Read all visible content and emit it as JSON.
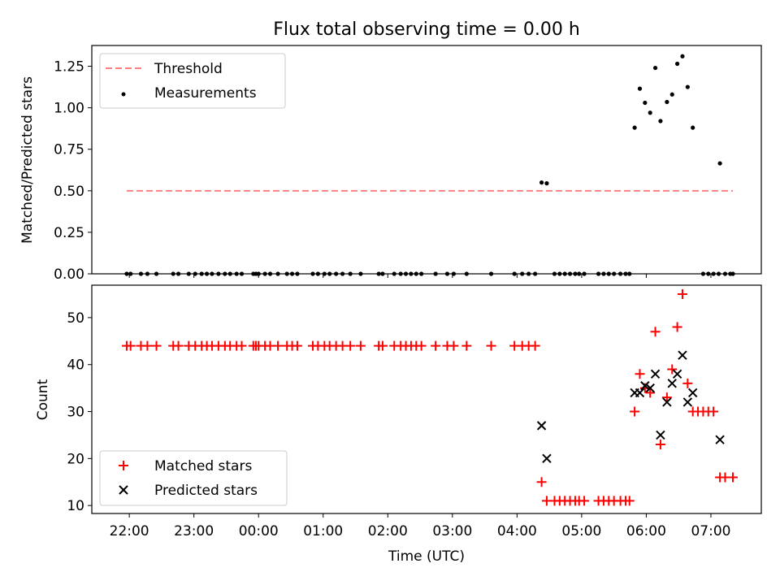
{
  "chart_data": [
    {
      "type": "scatter",
      "title": "Flux total observing time = 0.00 h",
      "xlabel": "",
      "ylabel": "Matched/Predicted stars",
      "ylim": [
        0,
        1.375
      ],
      "xlim_hours": [
        -2.58,
        7.78
      ],
      "yticks": [
        0.0,
        0.25,
        0.5,
        0.75,
        1.0,
        1.25
      ],
      "ytick_labels": [
        "0.00",
        "0.25",
        "0.50",
        "0.75",
        "1.00",
        "1.25"
      ],
      "legend": {
        "location": "top-left",
        "entries": [
          "Threshold",
          "Measurements"
        ]
      },
      "threshold": {
        "name": "Threshold",
        "value": 0.5,
        "x_range_hours": [
          -2.04,
          7.34
        ],
        "color": "#ff8080"
      },
      "series": [
        {
          "name": "Measurements",
          "color": "#000000",
          "points": [
            [
              -2.04,
              0
            ],
            [
              -1.98,
              0
            ],
            [
              -1.82,
              0
            ],
            [
              -1.72,
              0
            ],
            [
              -1.58,
              0
            ],
            [
              -1.32,
              0
            ],
            [
              -1.24,
              0
            ],
            [
              -1.08,
              0
            ],
            [
              -0.98,
              0
            ],
            [
              -0.88,
              0
            ],
            [
              -0.8,
              0
            ],
            [
              -0.72,
              0
            ],
            [
              -0.62,
              0
            ],
            [
              -0.52,
              0
            ],
            [
              -0.44,
              0
            ],
            [
              -0.34,
              0
            ],
            [
              -0.26,
              0
            ],
            [
              -0.08,
              0
            ],
            [
              -0.04,
              0
            ],
            [
              0.0,
              0
            ],
            [
              0.1,
              0
            ],
            [
              0.18,
              0
            ],
            [
              0.3,
              0
            ],
            [
              0.44,
              0
            ],
            [
              0.52,
              0
            ],
            [
              0.6,
              0
            ],
            [
              0.84,
              0
            ],
            [
              0.92,
              0
            ],
            [
              1.02,
              0
            ],
            [
              1.1,
              0
            ],
            [
              1.2,
              0
            ],
            [
              1.3,
              0
            ],
            [
              1.42,
              0
            ],
            [
              1.58,
              0
            ],
            [
              1.86,
              0
            ],
            [
              1.92,
              0
            ],
            [
              2.1,
              0
            ],
            [
              2.2,
              0
            ],
            [
              2.28,
              0
            ],
            [
              2.36,
              0
            ],
            [
              2.44,
              0
            ],
            [
              2.52,
              0
            ],
            [
              2.74,
              0
            ],
            [
              2.92,
              0
            ],
            [
              3.02,
              0
            ],
            [
              3.22,
              0
            ],
            [
              3.6,
              0
            ],
            [
              3.96,
              0
            ],
            [
              4.08,
              0
            ],
            [
              4.18,
              0
            ],
            [
              4.28,
              0
            ],
            [
              4.38,
              0.55
            ],
            [
              4.46,
              0.545
            ],
            [
              4.58,
              0
            ],
            [
              4.66,
              0
            ],
            [
              4.74,
              0
            ],
            [
              4.82,
              0
            ],
            [
              4.9,
              0
            ],
            [
              4.96,
              0
            ],
            [
              5.04,
              0
            ],
            [
              5.26,
              0
            ],
            [
              5.34,
              0
            ],
            [
              5.42,
              0
            ],
            [
              5.5,
              0
            ],
            [
              5.6,
              0
            ],
            [
              5.68,
              0
            ],
            [
              5.74,
              0
            ],
            [
              5.82,
              0.88
            ],
            [
              5.9,
              1.115
            ],
            [
              5.98,
              1.03
            ],
            [
              6.06,
              0.97
            ],
            [
              6.14,
              1.24
            ],
            [
              6.22,
              0.92
            ],
            [
              6.32,
              1.035
            ],
            [
              6.4,
              1.08
            ],
            [
              6.48,
              1.265
            ],
            [
              6.56,
              1.31
            ],
            [
              6.64,
              1.125
            ],
            [
              6.72,
              0.88
            ],
            [
              6.88,
              0
            ],
            [
              6.96,
              0
            ],
            [
              7.04,
              0
            ],
            [
              7.12,
              0
            ],
            [
              7.14,
              0.665
            ],
            [
              7.22,
              0
            ],
            [
              7.3,
              0
            ],
            [
              7.34,
              0
            ]
          ]
        }
      ]
    },
    {
      "type": "scatter",
      "title": "",
      "xlabel": "Time (UTC)",
      "ylabel": "Count",
      "ylim": [
        8.3,
        56.9
      ],
      "xlim_hours": [
        -2.58,
        7.78
      ],
      "yticks": [
        10,
        20,
        30,
        40,
        50
      ],
      "ytick_labels": [
        "10",
        "20",
        "30",
        "40",
        "50"
      ],
      "xticks_hours": [
        -2,
        -1,
        0,
        1,
        2,
        3,
        4,
        5,
        6,
        7
      ],
      "xtick_labels": [
        "22:00",
        "23:00",
        "00:00",
        "01:00",
        "02:00",
        "03:00",
        "04:00",
        "05:00",
        "06:00",
        "07:00"
      ],
      "legend": {
        "location": "bottom-left",
        "entries": [
          "Matched stars",
          "Predicted stars"
        ]
      },
      "series": [
        {
          "name": "Matched stars",
          "color": "#ff0000",
          "marker": "plus",
          "points": [
            [
              -2.04,
              44
            ],
            [
              -1.98,
              44
            ],
            [
              -1.82,
              44
            ],
            [
              -1.72,
              44
            ],
            [
              -1.58,
              44
            ],
            [
              -1.32,
              44
            ],
            [
              -1.24,
              44
            ],
            [
              -1.08,
              44
            ],
            [
              -0.98,
              44
            ],
            [
              -0.88,
              44
            ],
            [
              -0.8,
              44
            ],
            [
              -0.72,
              44
            ],
            [
              -0.62,
              44
            ],
            [
              -0.52,
              44
            ],
            [
              -0.44,
              44
            ],
            [
              -0.34,
              44
            ],
            [
              -0.26,
              44
            ],
            [
              -0.08,
              44
            ],
            [
              -0.04,
              44
            ],
            [
              0.0,
              44
            ],
            [
              0.1,
              44
            ],
            [
              0.18,
              44
            ],
            [
              0.3,
              44
            ],
            [
              0.44,
              44
            ],
            [
              0.52,
              44
            ],
            [
              0.6,
              44
            ],
            [
              0.84,
              44
            ],
            [
              0.92,
              44
            ],
            [
              1.02,
              44
            ],
            [
              1.1,
              44
            ],
            [
              1.2,
              44
            ],
            [
              1.3,
              44
            ],
            [
              1.42,
              44
            ],
            [
              1.58,
              44
            ],
            [
              1.86,
              44
            ],
            [
              1.92,
              44
            ],
            [
              2.1,
              44
            ],
            [
              2.2,
              44
            ],
            [
              2.28,
              44
            ],
            [
              2.36,
              44
            ],
            [
              2.44,
              44
            ],
            [
              2.52,
              44
            ],
            [
              2.74,
              44
            ],
            [
              2.92,
              44
            ],
            [
              3.02,
              44
            ],
            [
              3.22,
              44
            ],
            [
              3.6,
              44
            ],
            [
              3.96,
              44
            ],
            [
              4.08,
              44
            ],
            [
              4.18,
              44
            ],
            [
              4.28,
              44
            ],
            [
              4.38,
              15
            ],
            [
              4.46,
              11
            ],
            [
              4.58,
              11
            ],
            [
              4.66,
              11
            ],
            [
              4.74,
              11
            ],
            [
              4.82,
              11
            ],
            [
              4.9,
              11
            ],
            [
              4.96,
              11
            ],
            [
              5.04,
              11
            ],
            [
              5.26,
              11
            ],
            [
              5.34,
              11
            ],
            [
              5.42,
              11
            ],
            [
              5.5,
              11
            ],
            [
              5.6,
              11
            ],
            [
              5.68,
              11
            ],
            [
              5.74,
              11
            ],
            [
              5.82,
              30
            ],
            [
              5.9,
              38
            ],
            [
              5.98,
              35
            ],
            [
              6.06,
              34
            ],
            [
              6.14,
              47
            ],
            [
              6.22,
              23
            ],
            [
              6.32,
              33
            ],
            [
              6.4,
              39
            ],
            [
              6.48,
              48
            ],
            [
              6.56,
              55
            ],
            [
              6.64,
              36
            ],
            [
              6.72,
              30
            ],
            [
              6.8,
              30
            ],
            [
              6.88,
              30
            ],
            [
              6.96,
              30
            ],
            [
              7.04,
              30
            ],
            [
              7.14,
              16
            ],
            [
              7.22,
              16
            ],
            [
              7.34,
              16
            ]
          ]
        },
        {
          "name": "Predicted stars",
          "color": "#000000",
          "marker": "x",
          "points": [
            [
              4.38,
              27
            ],
            [
              4.46,
              20
            ],
            [
              5.82,
              34
            ],
            [
              5.9,
              34
            ],
            [
              5.98,
              35.5
            ],
            [
              6.06,
              35
            ],
            [
              6.14,
              38
            ],
            [
              6.22,
              25
            ],
            [
              6.32,
              32
            ],
            [
              6.4,
              36
            ],
            [
              6.48,
              38
            ],
            [
              6.56,
              42
            ],
            [
              6.64,
              32
            ],
            [
              6.72,
              34
            ],
            [
              7.14,
              24
            ]
          ]
        }
      ]
    }
  ]
}
